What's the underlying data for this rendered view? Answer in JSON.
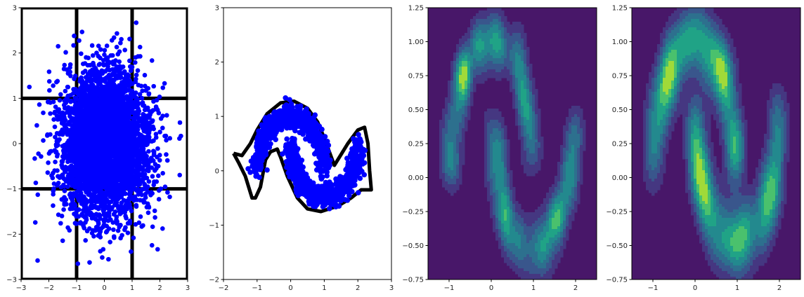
{
  "chart_data": [
    {
      "type": "scatter",
      "xlim": [
        -3,
        3
      ],
      "ylim": [
        -3,
        3
      ],
      "xticks": [
        "−3",
        "−2",
        "−1",
        "0",
        "1",
        "2",
        "3"
      ],
      "xtick_values": [
        -3,
        -2,
        -1,
        0,
        1,
        2,
        3
      ],
      "yticks": [
        "−3",
        "−2",
        "−1",
        "0",
        "1",
        "2",
        "3"
      ],
      "ytick_values": [
        -3,
        -2,
        -1,
        0,
        1,
        2,
        3
      ],
      "grid": false,
      "grid_lines": {
        "x": [
          -3,
          -1,
          1,
          3
        ],
        "y": [
          -3,
          -1,
          1,
          3
        ],
        "color": "#000000"
      },
      "series": [
        {
          "color": "#0000ff",
          "distribution": "gaussian",
          "mean": [
            0,
            0
          ],
          "std": [
            0.8,
            0.8
          ],
          "n": 4000
        }
      ]
    },
    {
      "type": "scatter",
      "xlim": [
        -2,
        3
      ],
      "ylim": [
        -2,
        3
      ],
      "xticks": [
        "−2",
        "−1",
        "0",
        "1",
        "2",
        "3"
      ],
      "xtick_values": [
        -2,
        -1,
        0,
        1,
        2,
        3
      ],
      "yticks": [
        "−2",
        "−1",
        "0",
        "1",
        "2",
        "3"
      ],
      "ytick_values": [
        -2,
        -1,
        0,
        1,
        2,
        3
      ],
      "grid": false,
      "boundary": {
        "color": "#000000",
        "points": [
          [
            -1.7,
            0.32
          ],
          [
            -1.45,
            0.28
          ],
          [
            -1.2,
            0.5
          ],
          [
            -1.0,
            0.75
          ],
          [
            -0.7,
            1.05
          ],
          [
            -0.3,
            1.25
          ],
          [
            0.1,
            1.28
          ],
          [
            0.5,
            1.15
          ],
          [
            0.8,
            0.9
          ],
          [
            1.0,
            0.6
          ],
          [
            1.15,
            0.35
          ],
          [
            1.3,
            0.1
          ],
          [
            1.5,
            0.3
          ],
          [
            1.7,
            0.5
          ],
          [
            2.0,
            0.75
          ],
          [
            2.2,
            0.8
          ],
          [
            2.3,
            0.5
          ],
          [
            2.35,
            0.0
          ],
          [
            2.4,
            -0.35
          ],
          [
            2.1,
            -0.35
          ],
          [
            1.8,
            -0.5
          ],
          [
            1.4,
            -0.65
          ],
          [
            0.9,
            -0.75
          ],
          [
            0.5,
            -0.7
          ],
          [
            0.2,
            -0.5
          ],
          [
            -0.1,
            -0.1
          ],
          [
            -0.3,
            0.25
          ],
          [
            -0.4,
            0.4
          ],
          [
            -0.6,
            0.35
          ],
          [
            -0.75,
            0.2
          ],
          [
            -0.9,
            -0.3
          ],
          [
            -1.05,
            -0.5
          ],
          [
            -1.15,
            -0.5
          ],
          [
            -1.35,
            -0.1
          ],
          [
            -1.55,
            0.15
          ],
          [
            -1.7,
            0.32
          ]
        ]
      },
      "series": [
        {
          "color": "#0000ff",
          "distribution": "two-moons",
          "noise": 0.1,
          "n": 1600
        }
      ]
    },
    {
      "type": "heatmap",
      "style": "filled-contour",
      "xlim": [
        -1.5,
        2.5
      ],
      "ylim": [
        -0.75,
        1.25
      ],
      "xticks": [
        "−1",
        "0",
        "1",
        "2"
      ],
      "xtick_values": [
        -1,
        0,
        1,
        2
      ],
      "yticks": [
        "−0.75",
        "−0.50",
        "−0.25",
        "0.00",
        "0.25",
        "0.50",
        "0.75",
        "1.00",
        "1.25"
      ],
      "ytick_values": [
        -0.75,
        -0.5,
        -0.25,
        0,
        0.25,
        0.5,
        0.75,
        1.0,
        1.25
      ],
      "grid": false,
      "density": "two-moons",
      "colormap": [
        "#481769",
        "#453781",
        "#39568c",
        "#2d708e",
        "#23898e",
        "#20a386",
        "#4ac16d",
        "#a0da39"
      ]
    },
    {
      "type": "heatmap",
      "style": "filled-contour",
      "xlim": [
        -1.5,
        2.5
      ],
      "ylim": [
        -0.75,
        1.25
      ],
      "xticks": [
        "−1",
        "0",
        "1",
        "2"
      ],
      "xtick_values": [
        -1,
        0,
        1,
        2
      ],
      "yticks": [
        "−0.75",
        "−0.50",
        "−0.25",
        "0.00",
        "0.25",
        "0.50",
        "0.75",
        "1.00",
        "1.25"
      ],
      "ytick_values": [
        -0.75,
        -0.5,
        -0.25,
        0,
        0.25,
        0.5,
        0.75,
        1.0,
        1.25
      ],
      "grid": false,
      "density": "two-moons",
      "colormap": [
        "#481769",
        "#453781",
        "#39568c",
        "#2d708e",
        "#23898e",
        "#20a386",
        "#4ac16d",
        "#a0da39"
      ]
    }
  ]
}
